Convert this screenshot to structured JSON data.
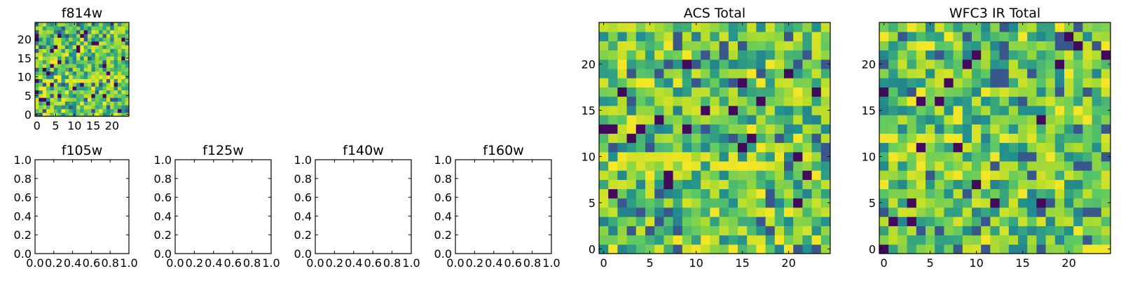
{
  "colors": {
    "viridis_stops": [
      "#440154",
      "#3b528b",
      "#21908d",
      "#5dc963",
      "#b5de2b",
      "#fde725"
    ],
    "axis": "#000000",
    "background": "#ffffff"
  },
  "chart_data": [
    {
      "id": "f814w",
      "type": "heatmap",
      "title": "f814w",
      "grid_size": 25,
      "xlim": [
        -0.5,
        24.5
      ],
      "ylim": [
        -0.5,
        24.5
      ],
      "xticks": [
        0,
        5,
        10,
        15,
        20
      ],
      "yticks": [
        0,
        5,
        10,
        15,
        20
      ],
      "seed": 814,
      "bright_rows": [
        9,
        10
      ]
    },
    {
      "id": "f105w",
      "type": "empty",
      "title": "f105w",
      "xlim": [
        0,
        1
      ],
      "ylim": [
        0,
        1
      ],
      "xticks": [
        "0.0",
        "0.2",
        "0.4",
        "0.6",
        "0.8",
        "1.0"
      ],
      "yticks": [
        "0.0",
        "0.2",
        "0.4",
        "0.6",
        "0.8",
        "1.0"
      ]
    },
    {
      "id": "f125w",
      "type": "empty",
      "title": "f125w",
      "xlim": [
        0,
        1
      ],
      "ylim": [
        0,
        1
      ],
      "xticks": [
        "0.0",
        "0.2",
        "0.4",
        "0.6",
        "0.8",
        "1.0"
      ],
      "yticks": [
        "0.0",
        "0.2",
        "0.4",
        "0.6",
        "0.8",
        "1.0"
      ]
    },
    {
      "id": "f140w",
      "type": "empty",
      "title": "f140w",
      "xlim": [
        0,
        1
      ],
      "ylim": [
        0,
        1
      ],
      "xticks": [
        "0.0",
        "0.2",
        "0.4",
        "0.6",
        "0.8",
        "1.0"
      ],
      "yticks": [
        "0.0",
        "0.2",
        "0.4",
        "0.6",
        "0.8",
        "1.0"
      ]
    },
    {
      "id": "f160w",
      "type": "empty",
      "title": "f160w",
      "xlim": [
        0,
        1
      ],
      "ylim": [
        0,
        1
      ],
      "xticks": [
        "0.0",
        "0.2",
        "0.4",
        "0.6",
        "0.8",
        "1.0"
      ],
      "yticks": [
        "0.0",
        "0.2",
        "0.4",
        "0.6",
        "0.8",
        "1.0"
      ]
    },
    {
      "id": "acs-total",
      "type": "heatmap",
      "title": "ACS Total",
      "grid_size": 25,
      "xlim": [
        -0.5,
        24.5
      ],
      "ylim": [
        -0.5,
        24.5
      ],
      "xticks": [
        0,
        5,
        10,
        15,
        20
      ],
      "yticks": [
        0,
        5,
        10,
        15,
        20
      ],
      "seed": 1234,
      "bright_rows": [
        9,
        10
      ]
    },
    {
      "id": "wfc3-ir-total",
      "type": "heatmap",
      "title": "WFC3 IR Total",
      "grid_size": 25,
      "xlim": [
        -0.5,
        24.5
      ],
      "ylim": [
        -0.5,
        24.5
      ],
      "xticks": [
        0,
        5,
        10,
        15,
        20
      ],
      "yticks": [
        0,
        5,
        10,
        15,
        20
      ],
      "seed": 777,
      "bright_rows": [
        12
      ]
    }
  ]
}
